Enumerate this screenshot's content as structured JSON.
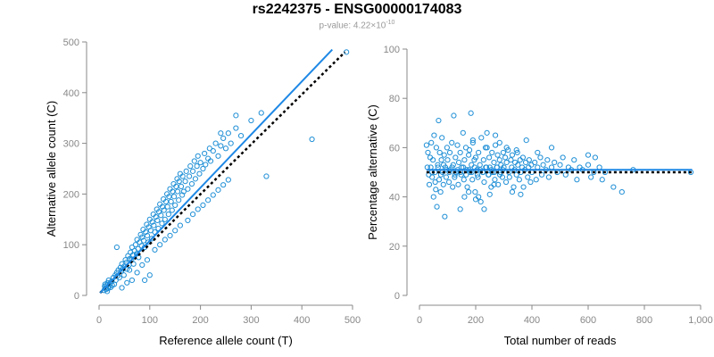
{
  "header": {
    "title": "rs2242375 - ENSG00000174083",
    "subtitle_prefix": "p-value: 4.22×10",
    "subtitle_exponent": "-10"
  },
  "colors": {
    "points": "#1f8fd6",
    "fit_line": "#1e88e5",
    "reference_line": "#000000",
    "tick": "#888888"
  },
  "chart_data": [
    {
      "type": "scatter",
      "title": "",
      "xlabel": "Reference allele count (T)",
      "ylabel": "Alternative allele count (C)",
      "xlim": [
        0,
        500
      ],
      "ylim": [
        0,
        500
      ],
      "xticks": [
        0,
        100,
        200,
        300,
        400,
        500
      ],
      "yticks": [
        0,
        100,
        200,
        300,
        400,
        500
      ],
      "xtick_labels": [
        "0",
        "100",
        "200",
        "300",
        "400",
        "500"
      ],
      "ytick_labels": [
        "0",
        "100",
        "200",
        "300",
        "400",
        "500"
      ],
      "fit_line": {
        "x": [
          2,
          460
        ],
        "y": [
          5,
          485
        ]
      },
      "reference_line": {
        "x": [
          2,
          485
        ],
        "y": [
          5,
          480
        ]
      },
      "points": [
        [
          10,
          10
        ],
        [
          11,
          18
        ],
        [
          12,
          22
        ],
        [
          13,
          15
        ],
        [
          14,
          12
        ],
        [
          15,
          20
        ],
        [
          16,
          8
        ],
        [
          17,
          25
        ],
        [
          18,
          14
        ],
        [
          19,
          30
        ],
        [
          20,
          18
        ],
        [
          22,
          24
        ],
        [
          23,
          16
        ],
        [
          25,
          28
        ],
        [
          26,
          20
        ],
        [
          28,
          35
        ],
        [
          30,
          22
        ],
        [
          32,
          40
        ],
        [
          33,
          30
        ],
        [
          35,
          45
        ],
        [
          36,
          38
        ],
        [
          38,
          50
        ],
        [
          40,
          35
        ],
        [
          42,
          55
        ],
        [
          44,
          48
        ],
        [
          45,
          62
        ],
        [
          47,
          52
        ],
        [
          49,
          40
        ],
        [
          50,
          58
        ],
        [
          52,
          70
        ],
        [
          54,
          65
        ],
        [
          55,
          52
        ],
        [
          57,
          78
        ],
        [
          59,
          60
        ],
        [
          60,
          72
        ],
        [
          62,
          85
        ],
        [
          64,
          70
        ],
        [
          65,
          95
        ],
        [
          67,
          80
        ],
        [
          68,
          62
        ],
        [
          70,
          88
        ],
        [
          72,
          100
        ],
        [
          74,
          82
        ],
        [
          75,
          110
        ],
        [
          77,
          92
        ],
        [
          78,
          75
        ],
        [
          80,
          105
        ],
        [
          82,
          120
        ],
        [
          84,
          98
        ],
        [
          85,
          115
        ],
        [
          87,
          130
        ],
        [
          88,
          108
        ],
        [
          90,
          95
        ],
        [
          92,
          125
        ],
        [
          94,
          140
        ],
        [
          95,
          118
        ],
        [
          97,
          105
        ],
        [
          98,
          135
        ],
        [
          100,
          150
        ],
        [
          102,
          128
        ],
        [
          104,
          112
        ],
        [
          105,
          145
        ],
        [
          107,
          160
        ],
        [
          108,
          138
        ],
        [
          110,
          125
        ],
        [
          112,
          155
        ],
        [
          114,
          170
        ],
        [
          115,
          148
        ],
        [
          117,
          132
        ],
        [
          118,
          165
        ],
        [
          120,
          180
        ],
        [
          122,
          158
        ],
        [
          124,
          142
        ],
        [
          125,
          175
        ],
        [
          127,
          190
        ],
        [
          128,
          168
        ],
        [
          130,
          150
        ],
        [
          132,
          185
        ],
        [
          134,
          200
        ],
        [
          135,
          175
        ],
        [
          137,
          160
        ],
        [
          138,
          195
        ],
        [
          140,
          210
        ],
        [
          142,
          185
        ],
        [
          144,
          168
        ],
        [
          145,
          205
        ],
        [
          147,
          220
        ],
        [
          148,
          195
        ],
        [
          150,
          178
        ],
        [
          152,
          215
        ],
        [
          154,
          230
        ],
        [
          155,
          205
        ],
        [
          157,
          188
        ],
        [
          158,
          225
        ],
        [
          160,
          240
        ],
        [
          162,
          215
        ],
        [
          164,
          198
        ],
        [
          165,
          235
        ],
        [
          167,
          205
        ],
        [
          170,
          225
        ],
        [
          172,
          245
        ],
        [
          175,
          210
        ],
        [
          178,
          235
        ],
        [
          180,
          255
        ],
        [
          183,
          220
        ],
        [
          185,
          245
        ],
        [
          188,
          265
        ],
        [
          190,
          230
        ],
        [
          193,
          255
        ],
        [
          195,
          275
        ],
        [
          198,
          240
        ],
        [
          200,
          262
        ],
        [
          205,
          250
        ],
        [
          208,
          280
        ],
        [
          210,
          258
        ],
        [
          215,
          270
        ],
        [
          218,
          290
        ],
        [
          220,
          265
        ],
        [
          225,
          285
        ],
        [
          230,
          300
        ],
        [
          235,
          275
        ],
        [
          240,
          295
        ],
        [
          245,
          310
        ],
        [
          250,
          290
        ],
        [
          255,
          320
        ],
        [
          260,
          300
        ],
        [
          270,
          330
        ],
        [
          280,
          315
        ],
        [
          300,
          345
        ],
        [
          320,
          360
        ],
        [
          240,
          320
        ],
        [
          270,
          355
        ],
        [
          330,
          235
        ],
        [
          420,
          308
        ],
        [
          488,
          480
        ],
        [
          60,
          50
        ],
        [
          75,
          45
        ],
        [
          85,
          60
        ],
        [
          95,
          70
        ],
        [
          110,
          90
        ],
        [
          120,
          100
        ],
        [
          130,
          110
        ],
        [
          140,
          118
        ],
        [
          150,
          128
        ],
        [
          160,
          138
        ],
        [
          175,
          148
        ],
        [
          185,
          160
        ],
        [
          195,
          170
        ],
        [
          205,
          178
        ],
        [
          215,
          188
        ],
        [
          225,
          198
        ],
        [
          235,
          208
        ],
        [
          245,
          218
        ],
        [
          255,
          228
        ],
        [
          35,
          95
        ],
        [
          55,
          25
        ],
        [
          90,
          30
        ],
        [
          100,
          40
        ],
        [
          45,
          15
        ],
        [
          65,
          30
        ]
      ]
    },
    {
      "type": "scatter",
      "title": "",
      "xlabel": "Total number of reads",
      "ylabel": "Percentage alternative (C)",
      "xlim": [
        0,
        1000
      ],
      "ylim": [
        0,
        100
      ],
      "xticks": [
        0,
        200,
        400,
        600,
        800,
        1000
      ],
      "yticks": [
        0,
        20,
        40,
        60,
        80,
        100
      ],
      "xtick_labels": [
        "0",
        "200",
        "400",
        "600",
        "800",
        "1,000"
      ],
      "ytick_labels": [
        "0",
        "20",
        "40",
        "60",
        "80",
        "100"
      ],
      "fit_line": {
        "x": [
          25,
          970
        ],
        "y": [
          51,
          51
        ]
      },
      "reference_line": {
        "x": [
          25,
          970
        ],
        "y": [
          50,
          50
        ]
      },
      "points": [
        [
          30,
          58
        ],
        [
          35,
          45
        ],
        [
          40,
          52
        ],
        [
          42,
          62
        ],
        [
          45,
          48
        ],
        [
          48,
          55
        ],
        [
          50,
          40
        ],
        [
          52,
          65
        ],
        [
          55,
          50
        ],
        [
          58,
          43
        ],
        [
          60,
          60
        ],
        [
          62,
          36
        ],
        [
          65,
          53
        ],
        [
          68,
          71
        ],
        [
          70,
          47
        ],
        [
          72,
          58
        ],
        [
          75,
          42
        ],
        [
          78,
          55
        ],
        [
          80,
          64
        ],
        [
          82,
          50
        ],
        [
          85,
          45
        ],
        [
          88,
          57
        ],
        [
          90,
          32
        ],
        [
          92,
          52
        ],
        [
          95,
          48
        ],
        [
          98,
          60
        ],
        [
          100,
          55
        ],
        [
          105,
          46
        ],
        [
          108,
          58
        ],
        [
          110,
          51
        ],
        [
          115,
          62
        ],
        [
          118,
          44
        ],
        [
          120,
          53
        ],
        [
          122,
          73
        ],
        [
          125,
          48
        ],
        [
          128,
          56
        ],
        [
          130,
          50
        ],
        [
          135,
          61
        ],
        [
          138,
          45
        ],
        [
          140,
          54
        ],
        [
          145,
          58
        ],
        [
          148,
          49
        ],
        [
          150,
          52
        ],
        [
          155,
          66
        ],
        [
          158,
          47
        ],
        [
          160,
          55
        ],
        [
          165,
          60
        ],
        [
          168,
          51
        ],
        [
          170,
          44
        ],
        [
          175,
          57
        ],
        [
          178,
          59
        ],
        [
          180,
          50
        ],
        [
          183,
          74
        ],
        [
          185,
          53
        ],
        [
          188,
          47
        ],
        [
          190,
          62
        ],
        [
          195,
          55
        ],
        [
          198,
          42
        ],
        [
          200,
          56
        ],
        [
          205,
          51
        ],
        [
          208,
          48
        ],
        [
          210,
          58
        ],
        [
          215,
          53
        ],
        [
          218,
          38
        ],
        [
          220,
          64
        ],
        [
          225,
          50
        ],
        [
          228,
          55
        ],
        [
          230,
          46
        ],
        [
          235,
          60
        ],
        [
          238,
          52
        ],
        [
          240,
          66
        ],
        [
          245,
          49
        ],
        [
          248,
          56
        ],
        [
          250,
          52
        ],
        [
          255,
          44
        ],
        [
          258,
          58
        ],
        [
          260,
          50
        ],
        [
          265,
          54
        ],
        [
          268,
          47
        ],
        [
          270,
          61
        ],
        [
          275,
          52
        ],
        [
          278,
          57
        ],
        [
          280,
          45
        ],
        [
          285,
          55
        ],
        [
          288,
          50
        ],
        [
          290,
          53
        ],
        [
          295,
          48
        ],
        [
          298,
          58
        ],
        [
          300,
          52
        ],
        [
          305,
          56
        ],
        [
          308,
          46
        ],
        [
          310,
          54
        ],
        [
          315,
          59
        ],
        [
          318,
          50
        ],
        [
          320,
          48
        ],
        [
          325,
          55
        ],
        [
          328,
          52
        ],
        [
          330,
          57
        ],
        [
          335,
          44
        ],
        [
          338,
          51
        ],
        [
          340,
          54
        ],
        [
          345,
          49
        ],
        [
          348,
          58
        ],
        [
          350,
          53
        ],
        [
          355,
          47
        ],
        [
          358,
          55
        ],
        [
          360,
          50
        ],
        [
          365,
          52
        ],
        [
          368,
          56
        ],
        [
          370,
          44
        ],
        [
          375,
          51
        ],
        [
          378,
          54
        ],
        [
          380,
          63
        ],
        [
          385,
          48
        ],
        [
          388,
          52
        ],
        [
          390,
          55
        ],
        [
          395,
          46
        ],
        [
          398,
          53
        ],
        [
          400,
          50
        ],
        [
          410,
          54
        ],
        [
          415,
          47
        ],
        [
          420,
          52
        ],
        [
          430,
          56
        ],
        [
          435,
          49
        ],
        [
          440,
          53
        ],
        [
          450,
          51
        ],
        [
          455,
          55
        ],
        [
          460,
          48
        ],
        [
          470,
          52
        ],
        [
          480,
          54
        ],
        [
          490,
          50
        ],
        [
          500,
          53
        ],
        [
          510,
          56
        ],
        [
          520,
          49
        ],
        [
          530,
          52
        ],
        [
          540,
          51
        ],
        [
          550,
          55
        ],
        [
          560,
          47
        ],
        [
          570,
          52
        ],
        [
          580,
          51
        ],
        [
          600,
          53
        ],
        [
          610,
          48
        ],
        [
          620,
          50
        ],
        [
          640,
          52
        ],
        [
          650,
          47
        ],
        [
          660,
          50
        ],
        [
          690,
          44
        ],
        [
          720,
          42
        ],
        [
          760,
          51
        ],
        [
          965,
          50
        ],
        [
          25,
          61
        ],
        [
          28,
          52
        ],
        [
          33,
          49
        ],
        [
          38,
          56
        ],
        [
          44,
          50
        ],
        [
          56,
          46
        ],
        [
          66,
          52
        ],
        [
          76,
          49
        ],
        [
          86,
          53
        ],
        [
          96,
          51
        ],
        [
          106,
          50
        ],
        [
          116,
          52
        ],
        [
          126,
          49
        ],
        [
          136,
          51
        ],
        [
          146,
          50
        ],
        [
          156,
          52
        ],
        [
          166,
          49
        ],
        [
          176,
          51
        ],
        [
          186,
          50
        ],
        [
          196,
          52
        ],
        [
          206,
          49
        ],
        [
          216,
          51
        ],
        [
          226,
          50
        ],
        [
          236,
          52
        ],
        [
          246,
          49
        ],
        [
          256,
          51
        ],
        [
          266,
          50
        ],
        [
          276,
          52
        ],
        [
          286,
          49
        ],
        [
          296,
          51
        ],
        [
          145,
          35
        ],
        [
          160,
          40
        ],
        [
          210,
          40
        ],
        [
          230,
          35
        ],
        [
          250,
          41
        ],
        [
          175,
          42
        ],
        [
          200,
          39
        ],
        [
          265,
          45
        ],
        [
          330,
          42
        ],
        [
          360,
          41
        ],
        [
          270,
          65
        ],
        [
          285,
          62
        ],
        [
          240,
          60
        ],
        [
          190,
          63
        ],
        [
          310,
          60
        ],
        [
          345,
          59
        ],
        [
          420,
          58
        ],
        [
          600,
          57
        ],
        [
          625,
          56
        ],
        [
          470,
          60
        ]
      ]
    }
  ]
}
